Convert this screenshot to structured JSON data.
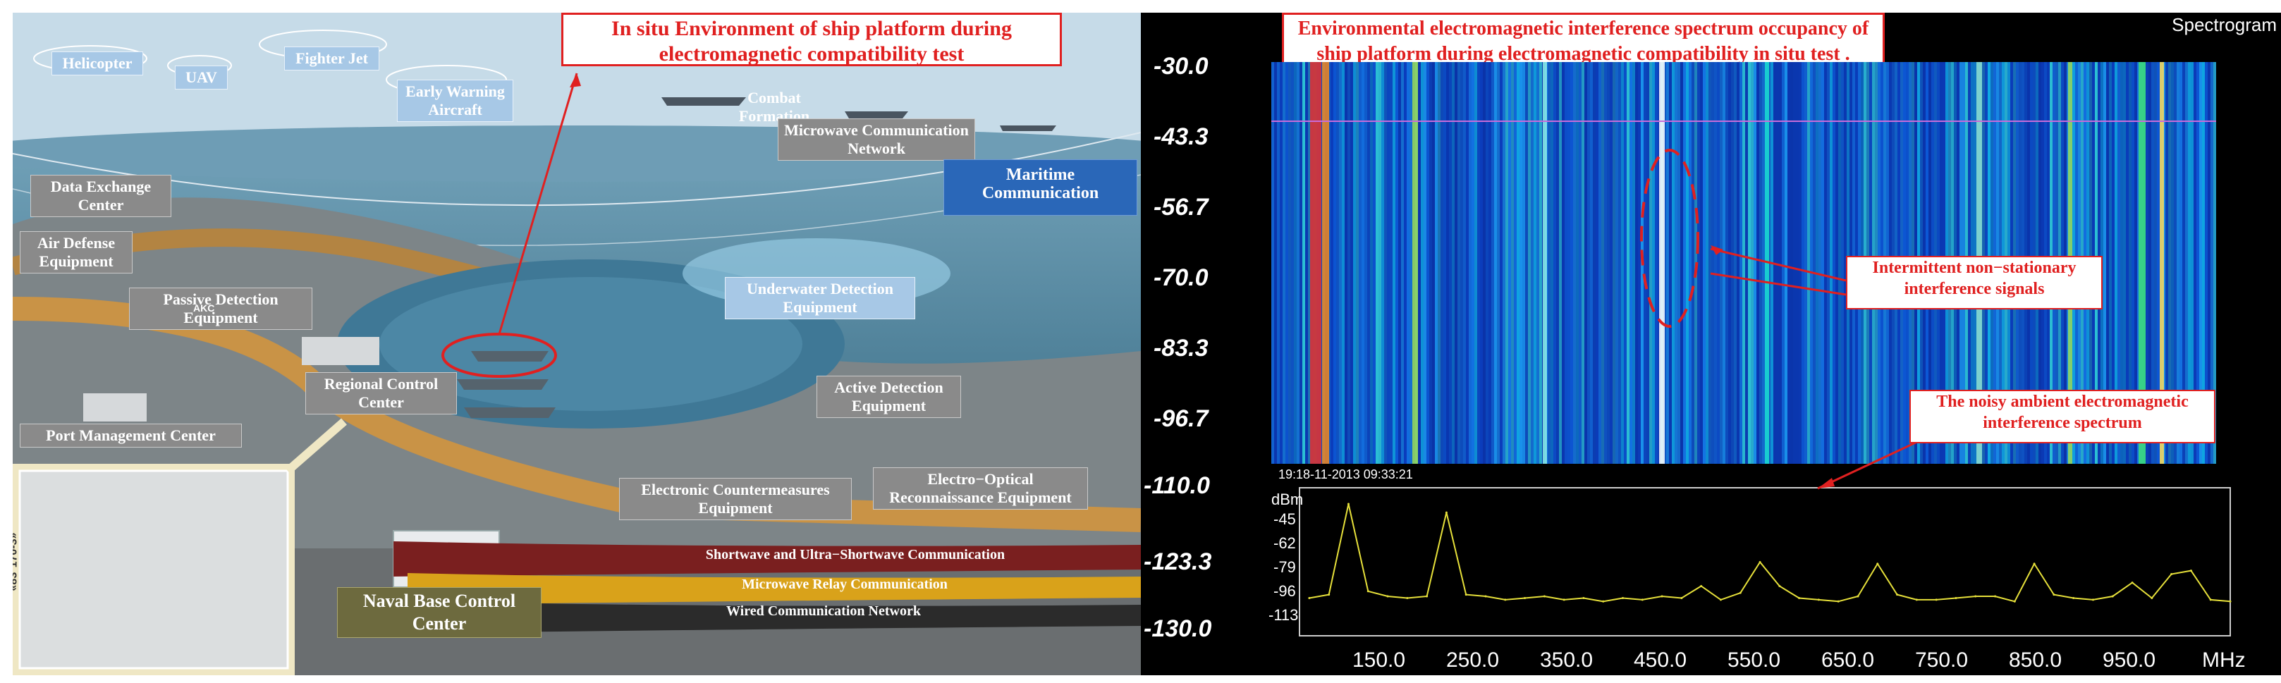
{
  "left_panel": {
    "title": "In situ Environment of ship platform during electromagnetic compatibility test",
    "labels": {
      "helicopter": "Helicopter",
      "uav": "UAV",
      "fighter_jet": "Fighter Jet",
      "early_warning": "Early Warning Aircraft",
      "combat_formation": "Combat Formation",
      "microwave_network": "Microwave Communication Network",
      "maritime_comm": "Maritime Communication",
      "data_exchange": "Data Exchange Center",
      "air_defense": "Air Defense Equipment",
      "passive_detection": "Passive Detection Equipment",
      "underwater_detection": "Underwater Detection Equipment",
      "regional_control": "Regional Control Center",
      "active_detection": "Active Detection Equipment",
      "port_management": "Port Management Center",
      "ecm": "Electronic Countermeasures Equipment",
      "electro_optical": "Electro−Optical Reconnaissance Equipment",
      "naval_base": "Naval Base Control Center",
      "akc": "AKC",
      "building_sign": "«83°170-3»"
    },
    "bands": {
      "shortwave": "Shortwave and Ultra−Shortwave Communication",
      "microwave_relay": "Microwave Relay Communication",
      "wired": "Wired Communication Network"
    },
    "colors": {
      "highlight": "#e02020",
      "shortwave_band": "#7a1f1f",
      "microwave_band": "#d9a21a",
      "wired_band": "#2b2b2b"
    }
  },
  "right_panel": {
    "title": "Environmental electromagnetic interference spectrum occupancy of ship platform during electromagnetic compatibility in situ test .",
    "corner_label": "Spectrogram",
    "y_ticks": [
      "-30.0",
      "-43.3",
      "-56.7",
      "-70.0",
      "-83.3",
      "-96.7",
      "-110.0",
      "-123.3",
      "-130.0"
    ],
    "x_ticks": [
      "150.0",
      "250.0",
      "350.0",
      "450.0",
      "550.0",
      "650.0",
      "750.0",
      "850.0",
      "950.0"
    ],
    "x_unit": "MHz",
    "timestamp": "19:18-11-2013 09:33:21",
    "power_axis_unit": "dBm",
    "power_ticks": [
      "-45",
      "-62",
      "-79",
      "-96",
      "-113"
    ],
    "annotation_intermittent": "Intermittent non−stationary interference signals",
    "annotation_noisy": "The noisy ambient electromagnetic interference spectrum"
  },
  "chart_data": {
    "type": "line",
    "x": [
      60,
      80,
      100,
      120,
      140,
      160,
      180,
      200,
      220,
      240,
      260,
      280,
      300,
      320,
      340,
      360,
      380,
      400,
      420,
      440,
      460,
      480,
      500,
      520,
      540,
      560,
      580,
      600,
      620,
      640,
      660,
      680,
      700,
      720,
      740,
      760,
      780,
      800,
      820,
      840,
      860,
      880,
      900,
      920,
      940,
      960,
      980,
      1000
    ],
    "series": [
      {
        "values": [
          -100,
          -98,
          -45,
          -96,
          -99,
          -100,
          -99,
          -50,
          -98,
          -99,
          -101,
          -100,
          -99,
          -101,
          -100,
          -102,
          -100,
          -101,
          -99,
          -100,
          -93,
          -101,
          -97,
          -79,
          -93,
          -100,
          -101,
          -102,
          -99,
          -80,
          -98,
          -101,
          -101,
          -100,
          -99,
          -99,
          -102,
          -80,
          -98,
          -100,
          -101,
          -99,
          -91,
          -100,
          -86,
          -84,
          -101,
          -102
        ]
      }
    ],
    "xlabel": "MHz",
    "ylabel": "dBm",
    "xlim": [
      50,
      1000
    ],
    "ylim": [
      -113,
      -45
    ],
    "x_ticks": [
      150,
      250,
      350,
      450,
      550,
      650,
      750,
      850,
      950
    ],
    "y_ticks": [
      -45,
      -62,
      -79,
      -96,
      -113
    ],
    "grid": false
  }
}
